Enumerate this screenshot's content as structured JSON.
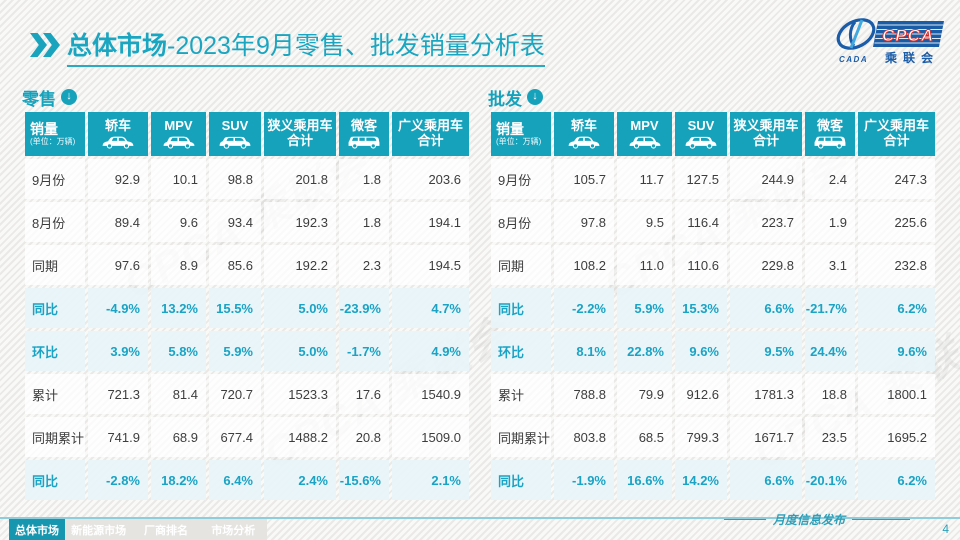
{
  "header": {
    "title_bold": "总体市场",
    "title_rest": "-2023年9月零售、批发销量分析表"
  },
  "logo": {
    "acronym": "CPCA",
    "name_cn": "乘联会",
    "sub": "CADA"
  },
  "watermark": "CPCA 乘联会",
  "colors": {
    "accent": "#17a2bc",
    "highlight_bg": "#e7f4f9",
    "tab_active": "#1796b0"
  },
  "tables": [
    {
      "section": "零售",
      "sales_label": "销量",
      "unit": "(单位：万辆)",
      "columns": [
        {
          "label": "轿车",
          "icon": "sedan-icon"
        },
        {
          "label": "MPV",
          "icon": "mpv-icon"
        },
        {
          "label": "SUV",
          "icon": "suv-icon"
        },
        {
          "label": "狭义乘用车",
          "label2": "合计"
        },
        {
          "label": "微客",
          "icon": "minivan-icon"
        },
        {
          "label": "广义乘用车",
          "label2": "合计"
        }
      ],
      "rows": [
        {
          "label": "9月份",
          "highlight": false,
          "values": [
            "92.9",
            "10.1",
            "98.8",
            "201.8",
            "1.8",
            "203.6"
          ]
        },
        {
          "label": "8月份",
          "highlight": false,
          "values": [
            "89.4",
            "9.6",
            "93.4",
            "192.3",
            "1.8",
            "194.1"
          ]
        },
        {
          "label": "同期",
          "highlight": false,
          "values": [
            "97.6",
            "8.9",
            "85.6",
            "192.2",
            "2.3",
            "194.5"
          ]
        },
        {
          "label": "同比",
          "highlight": true,
          "values": [
            "-4.9%",
            "13.2%",
            "15.5%",
            "5.0%",
            "-23.9%",
            "4.7%"
          ]
        },
        {
          "label": "环比",
          "highlight": true,
          "values": [
            "3.9%",
            "5.8%",
            "5.9%",
            "5.0%",
            "-1.7%",
            "4.9%"
          ]
        },
        {
          "label": "累计",
          "highlight": false,
          "values": [
            "721.3",
            "81.4",
            "720.7",
            "1523.3",
            "17.6",
            "1540.9"
          ]
        },
        {
          "label": "同期累计",
          "highlight": false,
          "values": [
            "741.9",
            "68.9",
            "677.4",
            "1488.2",
            "20.8",
            "1509.0"
          ]
        },
        {
          "label": "同比",
          "highlight": true,
          "values": [
            "-2.8%",
            "18.2%",
            "6.4%",
            "2.4%",
            "-15.6%",
            "2.1%"
          ]
        }
      ]
    },
    {
      "section": "批发",
      "sales_label": "销量",
      "unit": "(单位：万辆)",
      "columns": [
        {
          "label": "轿车",
          "icon": "sedan-icon"
        },
        {
          "label": "MPV",
          "icon": "mpv-icon"
        },
        {
          "label": "SUV",
          "icon": "suv-icon"
        },
        {
          "label": "狭义乘用车",
          "label2": "合计"
        },
        {
          "label": "微客",
          "icon": "minivan-icon"
        },
        {
          "label": "广义乘用车",
          "label2": "合计"
        }
      ],
      "rows": [
        {
          "label": "9月份",
          "highlight": false,
          "values": [
            "105.7",
            "11.7",
            "127.5",
            "244.9",
            "2.4",
            "247.3"
          ]
        },
        {
          "label": "8月份",
          "highlight": false,
          "values": [
            "97.8",
            "9.5",
            "116.4",
            "223.7",
            "1.9",
            "225.6"
          ]
        },
        {
          "label": "同期",
          "highlight": false,
          "values": [
            "108.2",
            "11.0",
            "110.6",
            "229.8",
            "3.1",
            "232.8"
          ]
        },
        {
          "label": "同比",
          "highlight": true,
          "values": [
            "-2.2%",
            "5.9%",
            "15.3%",
            "6.6%",
            "-21.7%",
            "6.2%"
          ]
        },
        {
          "label": "环比",
          "highlight": true,
          "values": [
            "8.1%",
            "22.8%",
            "9.6%",
            "9.5%",
            "24.4%",
            "9.6%"
          ]
        },
        {
          "label": "累计",
          "highlight": false,
          "values": [
            "788.8",
            "79.9",
            "912.6",
            "1781.3",
            "18.8",
            "1800.1"
          ]
        },
        {
          "label": "同期累计",
          "highlight": false,
          "values": [
            "803.8",
            "68.5",
            "799.3",
            "1671.7",
            "23.5",
            "1695.2"
          ]
        },
        {
          "label": "同比",
          "highlight": true,
          "values": [
            "-1.9%",
            "16.6%",
            "14.2%",
            "6.6%",
            "-20.1%",
            "6.2%"
          ]
        }
      ]
    }
  ],
  "nav": {
    "tabs": [
      {
        "label": "总体市场",
        "active": true
      },
      {
        "label": "新能源市场",
        "active": false
      },
      {
        "label": "厂商排名",
        "active": false
      },
      {
        "label": "市场分析",
        "active": false
      }
    ]
  },
  "footer": {
    "note": "月度信息发布",
    "page": "4"
  }
}
